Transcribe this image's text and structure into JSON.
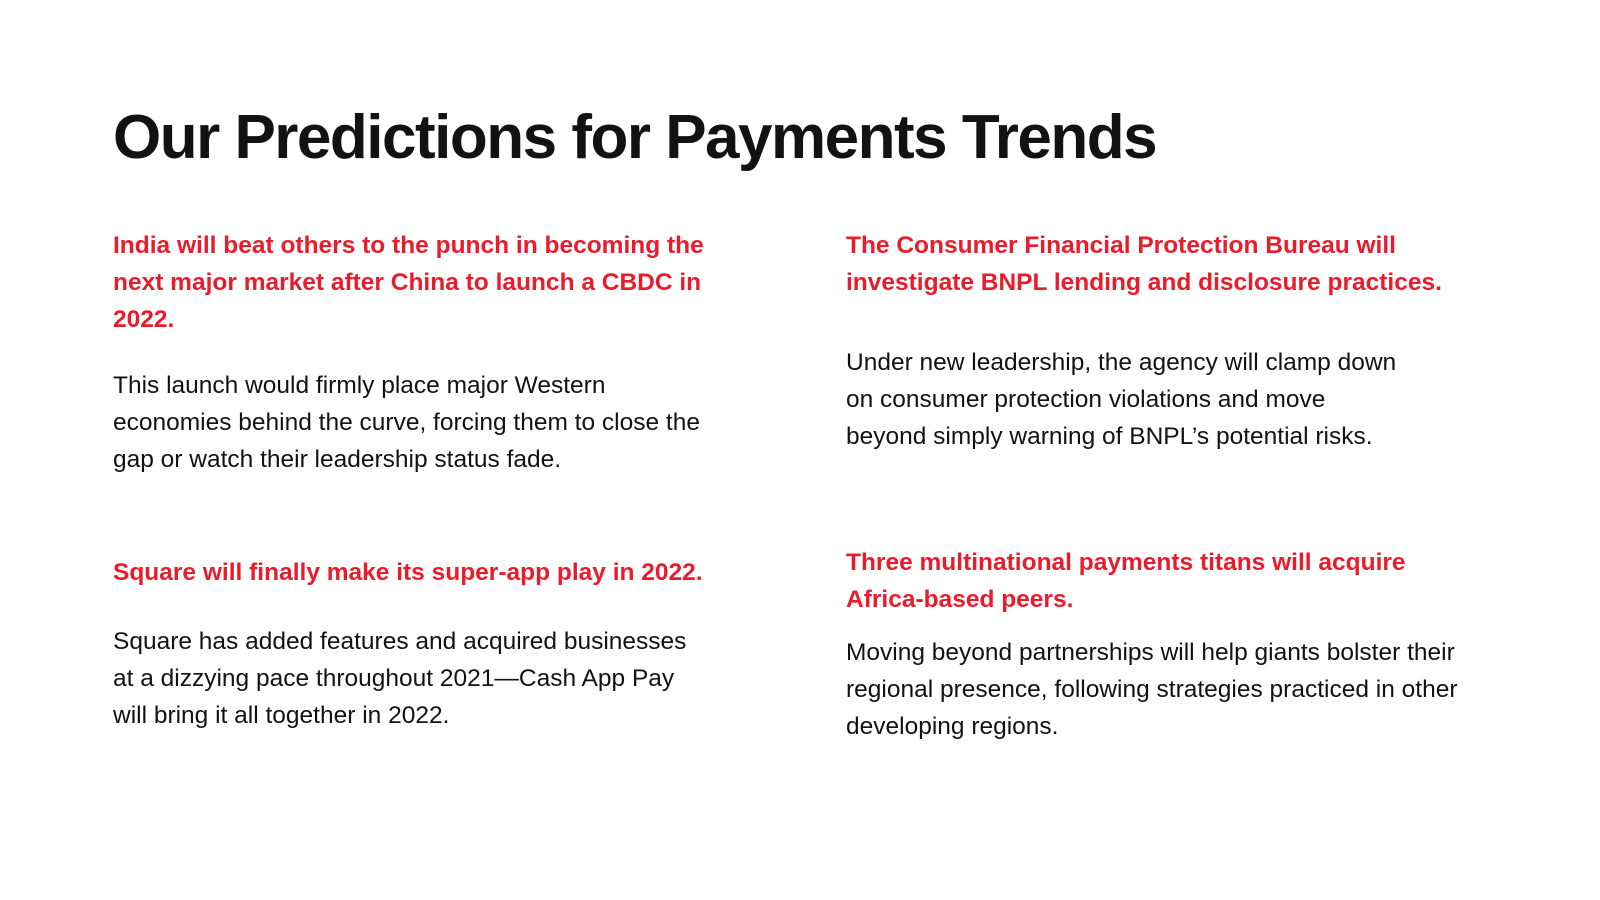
{
  "theme": {
    "background": "#ffffff",
    "accent_red": "#EA1C2B",
    "text_color": "#121212"
  },
  "title": "Our Predictions for Payments Trends",
  "sections": {
    "left": [
      {
        "heading": "India will beat others to the punch in becoming the\nnext major market after China to launch a CBDC in\n2022.",
        "body": "This launch would firmly place major Western\neconomies behind the curve, forcing them to close the\ngap or watch their leadership status fade."
      },
      {
        "heading": "Square will finally make its super-app play in 2022.",
        "body": "Square has added features and acquired businesses\nat a dizzying pace throughout 2021—Cash App Pay\nwill bring it all together in 2022."
      }
    ],
    "right": [
      {
        "heading": "The Consumer Financial Protection Bureau will\ninvestigate BNPL lending and disclosure practices.",
        "body": "Under new leadership, the agency will clamp down\non consumer protection violations and move\nbeyond simply warning of BNPL’s potential risks."
      },
      {
        "heading": "Three multinational payments titans will acquire\nAfrica-based peers.",
        "body": "Moving beyond partnerships will help giants bolster their\nregional presence, following strategies practiced in other\ndeveloping regions."
      }
    ]
  }
}
